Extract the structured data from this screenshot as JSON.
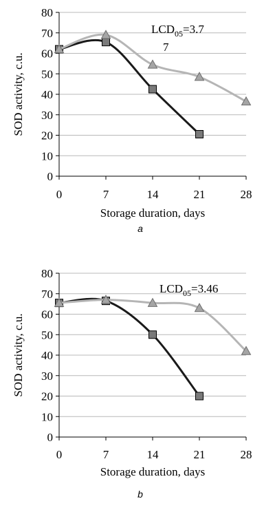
{
  "colors": {
    "axis": "#000000",
    "grid": "#b8b8b8",
    "series_dark": "#1a1a1a",
    "series_light": "#b5b5b5",
    "marker_square_fill": "#7a7a7a",
    "marker_triangle_fill": "#a5a5a5"
  },
  "chart_data": [
    {
      "panel_label": "a",
      "type": "line",
      "xlabel": "Storage duration, days",
      "ylabel": "SOD activity, c.u.",
      "xlim": [
        0,
        28
      ],
      "ylim": [
        0,
        80
      ],
      "x_ticks": [
        0,
        7,
        14,
        21,
        28
      ],
      "y_ticks": [
        0,
        10,
        20,
        30,
        40,
        50,
        60,
        70,
        80
      ],
      "grid": "horizontal",
      "annotation": {
        "main": "LCD",
        "sub": "05",
        "value_line1": "=3.7",
        "value_line2": "7"
      },
      "series": [
        {
          "marker": "square",
          "color_key": "series_dark",
          "x": [
            0,
            7,
            14,
            21
          ],
          "y": [
            62,
            65.5,
            42.5,
            20.5
          ]
        },
        {
          "marker": "triangle",
          "color_key": "series_light",
          "x": [
            0,
            7,
            14,
            21,
            28
          ],
          "y": [
            62,
            69,
            54.5,
            48.5,
            36.5
          ]
        }
      ]
    },
    {
      "panel_label": "b",
      "type": "line",
      "xlabel": "Storage duration, days",
      "ylabel": "SOD activity, c.u.",
      "xlim": [
        0,
        28
      ],
      "ylim": [
        0,
        80
      ],
      "x_ticks": [
        0,
        7,
        14,
        21,
        28
      ],
      "y_ticks": [
        0,
        10,
        20,
        30,
        40,
        50,
        60,
        70,
        80
      ],
      "grid": "horizontal",
      "annotation": {
        "main": "LCD",
        "sub": "05",
        "value_line1": "=3.46",
        "value_line2": ""
      },
      "series": [
        {
          "marker": "square",
          "color_key": "series_dark",
          "x": [
            0,
            7,
            14,
            21
          ],
          "y": [
            65.5,
            66.5,
            50,
            20
          ]
        },
        {
          "marker": "triangle",
          "color_key": "series_light",
          "x": [
            0,
            7,
            14,
            21,
            28
          ],
          "y": [
            65.5,
            67,
            65.5,
            63,
            42
          ]
        }
      ]
    }
  ]
}
